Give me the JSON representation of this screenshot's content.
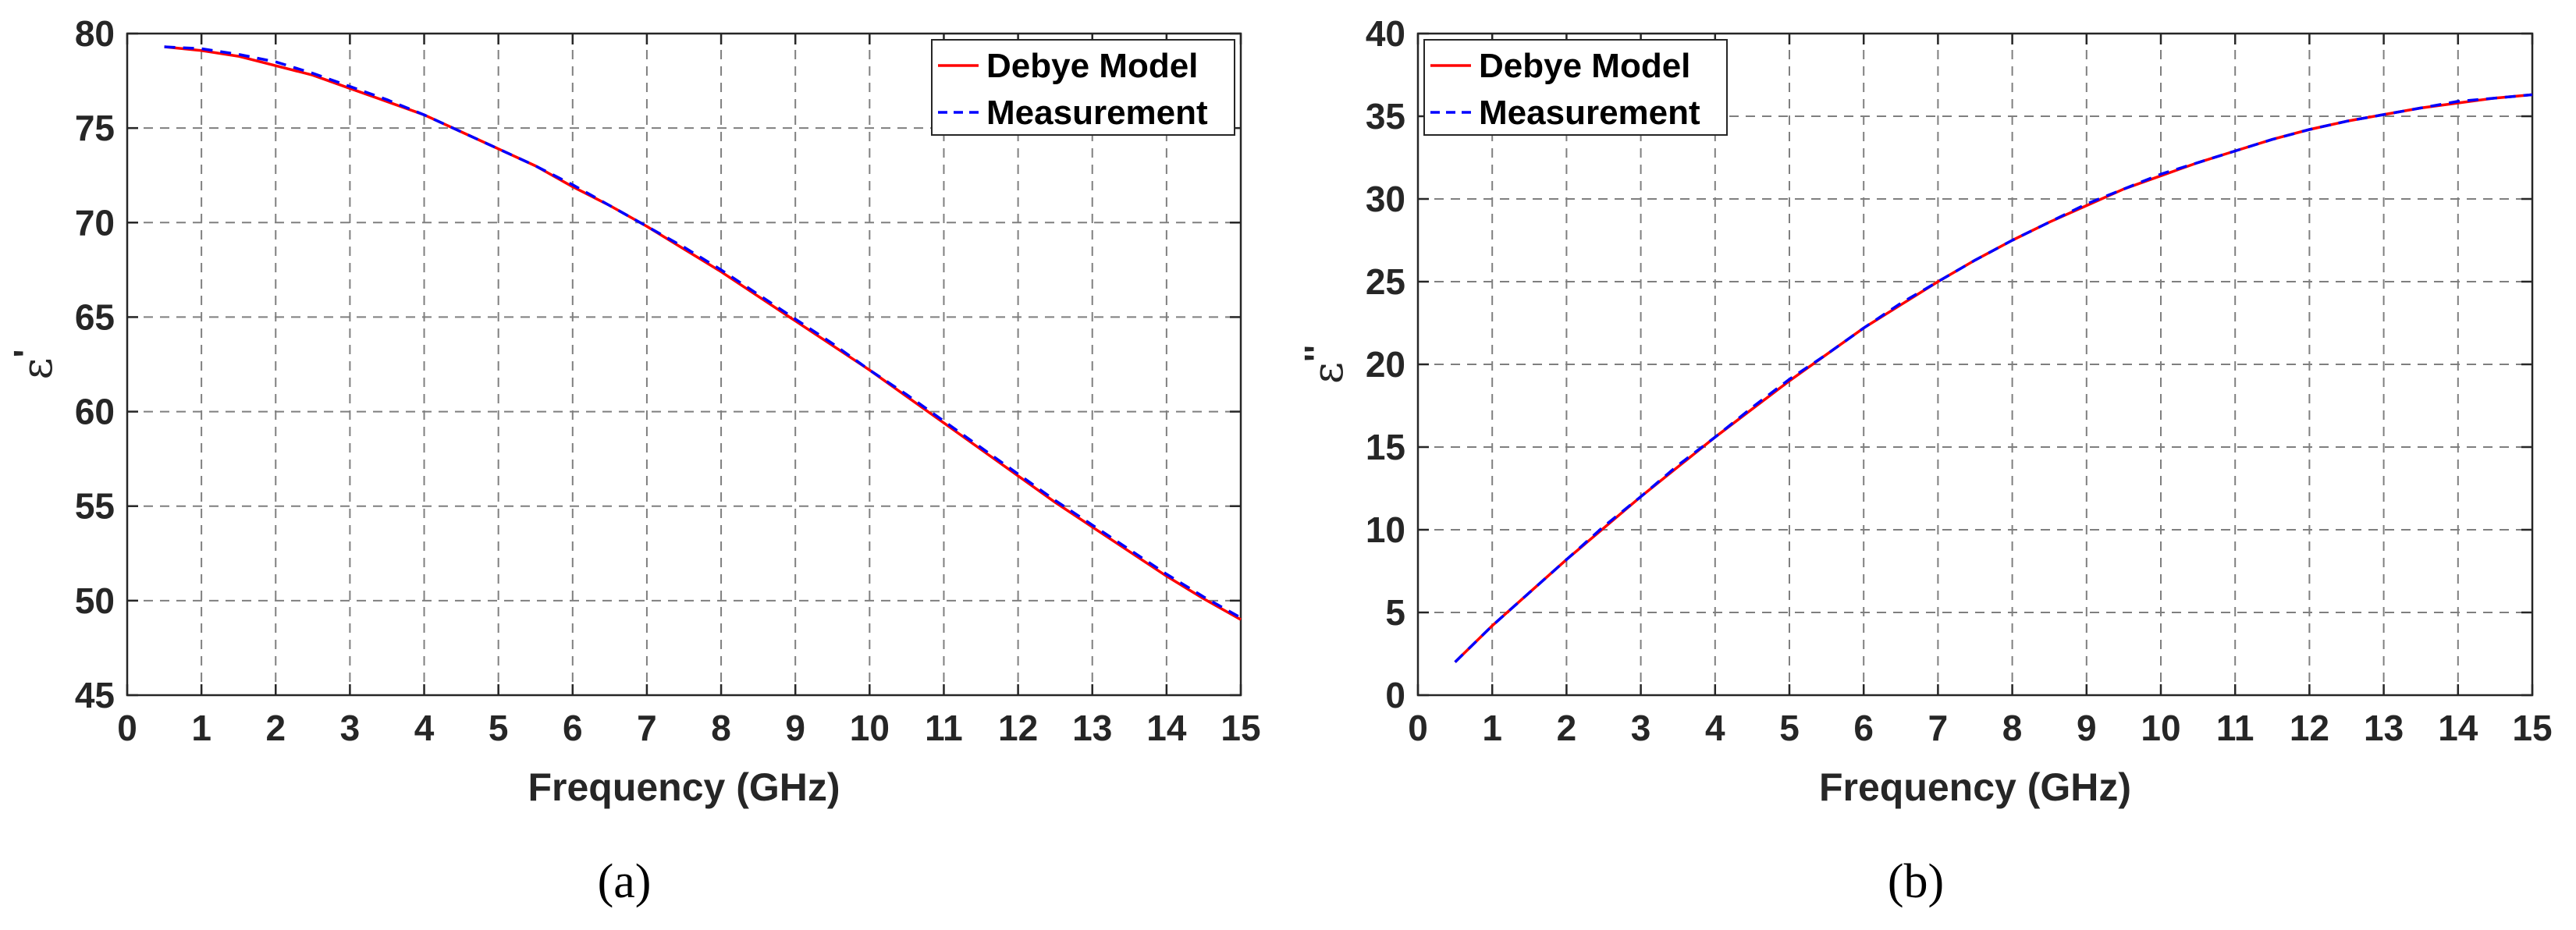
{
  "chart_data": [
    {
      "type": "line",
      "panel_label": "(a)",
      "xlabel": "Frequency (GHz)",
      "ylabel": "ε'",
      "ylabel_symbol": "ε",
      "ylabel_mark": "'",
      "xlim": [
        0,
        15
      ],
      "ylim": [
        45,
        80
      ],
      "xticks": [
        "0",
        "1",
        "2",
        "3",
        "4",
        "5",
        "6",
        "7",
        "8",
        "9",
        "10",
        "11",
        "12",
        "13",
        "14",
        "15"
      ],
      "yticks": [
        "45",
        "50",
        "55",
        "60",
        "65",
        "70",
        "75",
        "80"
      ],
      "grid": true,
      "legend": "top-right",
      "x": [
        0.5,
        1,
        1.5,
        2,
        2.5,
        3,
        3.5,
        4,
        4.5,
        5,
        5.5,
        6,
        6.5,
        7,
        7.5,
        8,
        8.5,
        9,
        9.5,
        10,
        10.5,
        11,
        11.5,
        12,
        12.5,
        13,
        13.5,
        14,
        14.5,
        15
      ],
      "series": [
        {
          "name": "Debye Model",
          "color": "#ff0000",
          "style": "solid",
          "values": [
            79.3,
            79.1,
            78.8,
            78.3,
            77.8,
            77.1,
            76.4,
            75.7,
            74.8,
            73.9,
            73.0,
            71.9,
            70.9,
            69.8,
            68.6,
            67.4,
            66.1,
            64.8,
            63.5,
            62.2,
            60.8,
            59.4,
            58.0,
            56.6,
            55.2,
            53.9,
            52.6,
            51.3,
            50.1,
            49.0
          ]
        },
        {
          "name": "Measurement",
          "color": "#0000ff",
          "style": "dashed",
          "values": [
            79.3,
            79.2,
            78.9,
            78.5,
            77.9,
            77.2,
            76.5,
            75.7,
            74.8,
            73.9,
            73.0,
            72.0,
            70.9,
            69.8,
            68.7,
            67.5,
            66.2,
            64.9,
            63.6,
            62.2,
            60.9,
            59.5,
            58.1,
            56.7,
            55.3,
            54.0,
            52.7,
            51.4,
            50.2,
            49.1
          ]
        }
      ]
    },
    {
      "type": "line",
      "panel_label": "(b)",
      "xlabel": "Frequency (GHz)",
      "ylabel": "ε''",
      "ylabel_symbol": "ε",
      "ylabel_mark": "''",
      "xlim": [
        0,
        15
      ],
      "ylim": [
        0,
        40
      ],
      "xticks": [
        "0",
        "1",
        "2",
        "3",
        "4",
        "5",
        "6",
        "7",
        "8",
        "9",
        "10",
        "11",
        "12",
        "13",
        "14",
        "15"
      ],
      "yticks": [
        "0",
        "5",
        "10",
        "15",
        "20",
        "25",
        "30",
        "35",
        "40"
      ],
      "grid": true,
      "legend": "top-left",
      "x": [
        0.5,
        1,
        1.5,
        2,
        2.5,
        3,
        3.5,
        4,
        4.5,
        5,
        5.5,
        6,
        6.5,
        7,
        7.5,
        8,
        8.5,
        9,
        9.5,
        10,
        10.5,
        11,
        11.5,
        12,
        12.5,
        13,
        13.5,
        14,
        14.5,
        15
      ],
      "series": [
        {
          "name": "Debye Model",
          "color": "#ff0000",
          "style": "solid",
          "values": [
            2.0,
            4.2,
            6.2,
            8.2,
            10.1,
            12.0,
            13.8,
            15.6,
            17.3,
            19.0,
            20.6,
            22.2,
            23.6,
            25.0,
            26.3,
            27.5,
            28.6,
            29.6,
            30.6,
            31.4,
            32.2,
            32.9,
            33.6,
            34.2,
            34.7,
            35.1,
            35.5,
            35.8,
            36.1,
            36.3
          ]
        },
        {
          "name": "Measurement",
          "color": "#0000ff",
          "style": "dashed",
          "values": [
            2.0,
            4.2,
            6.2,
            8.2,
            10.2,
            12.0,
            13.9,
            15.6,
            17.4,
            19.1,
            20.6,
            22.2,
            23.7,
            25.0,
            26.3,
            27.5,
            28.6,
            29.7,
            30.6,
            31.5,
            32.2,
            32.9,
            33.6,
            34.2,
            34.7,
            35.1,
            35.5,
            35.9,
            36.1,
            36.3
          ]
        }
      ]
    }
  ]
}
